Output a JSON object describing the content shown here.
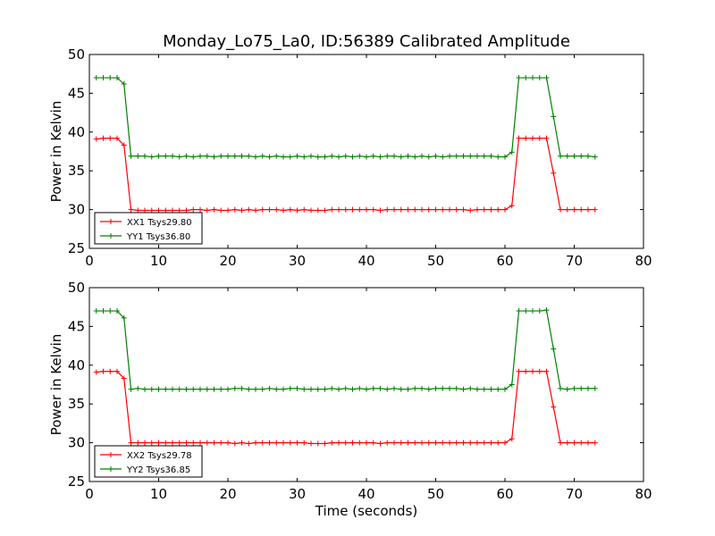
{
  "figure": {
    "title": "Monday_Lo75_La0, ID:56389 Calibrated Amplitude"
  },
  "chart_data": [
    {
      "type": "line",
      "title": "Monday_Lo75_La0, ID:56389 Calibrated Amplitude",
      "xlabel": "",
      "ylabel": "Power in Kelvin",
      "xlim": [
        0,
        80
      ],
      "ylim": [
        25,
        50
      ],
      "xticks": [
        "0",
        "10",
        "20",
        "30",
        "40",
        "50",
        "60",
        "70",
        "80"
      ],
      "yticks": [
        "25",
        "30",
        "35",
        "40",
        "45",
        "50"
      ],
      "grid": false,
      "legend_position": "lower-left",
      "x": [
        1,
        2,
        3,
        4,
        5,
        6,
        7,
        8,
        9,
        10,
        11,
        12,
        13,
        14,
        15,
        16,
        17,
        18,
        19,
        20,
        21,
        22,
        23,
        24,
        25,
        26,
        27,
        28,
        29,
        30,
        31,
        32,
        33,
        34,
        35,
        36,
        37,
        38,
        39,
        40,
        41,
        42,
        43,
        44,
        45,
        46,
        47,
        48,
        49,
        50,
        51,
        52,
        53,
        54,
        55,
        56,
        57,
        58,
        59,
        60,
        61,
        62,
        63,
        64,
        65,
        66,
        67,
        68,
        69,
        70,
        71,
        72,
        73
      ],
      "series": [
        {
          "name": "XX1 Tsys29.80",
          "color": "#ff0000",
          "values": [
            39.1,
            39.2,
            39.2,
            39.2,
            38.3,
            30.0,
            29.9,
            29.9,
            29.9,
            29.9,
            29.9,
            29.9,
            29.9,
            29.9,
            30.0,
            30.0,
            29.9,
            30.0,
            29.9,
            29.9,
            30.0,
            29.9,
            30.0,
            29.9,
            30.0,
            30.0,
            30.0,
            29.9,
            30.0,
            29.9,
            30.0,
            29.9,
            29.9,
            29.9,
            30.0,
            30.0,
            30.0,
            30.0,
            30.0,
            30.0,
            30.0,
            29.9,
            30.0,
            30.0,
            30.0,
            30.0,
            30.0,
            30.0,
            30.0,
            30.0,
            30.0,
            30.0,
            30.0,
            30.0,
            29.9,
            30.0,
            30.0,
            30.0,
            30.0,
            30.0,
            30.5,
            39.2,
            39.2,
            39.2,
            39.2,
            39.2,
            34.7,
            30.0,
            30.0,
            30.0,
            30.0,
            30.0,
            30.0
          ]
        },
        {
          "name": "YY1 Tsys36.80",
          "color": "#008000",
          "values": [
            47.0,
            47.0,
            47.0,
            47.0,
            46.2,
            36.9,
            36.9,
            36.9,
            36.8,
            36.9,
            36.9,
            36.9,
            36.8,
            36.9,
            36.8,
            36.9,
            36.9,
            36.8,
            36.9,
            36.9,
            36.9,
            36.9,
            36.9,
            36.8,
            36.9,
            36.8,
            36.9,
            36.8,
            36.8,
            36.9,
            36.8,
            36.9,
            36.8,
            36.8,
            36.9,
            36.8,
            36.9,
            36.8,
            36.9,
            36.8,
            36.9,
            36.8,
            36.9,
            36.9,
            36.8,
            36.9,
            36.8,
            36.9,
            36.8,
            36.9,
            36.8,
            36.9,
            36.9,
            36.9,
            36.9,
            36.9,
            36.9,
            36.9,
            36.8,
            36.8,
            37.4,
            47.0,
            47.0,
            47.0,
            47.0,
            47.0,
            42.0,
            36.9,
            36.9,
            36.9,
            36.9,
            36.9,
            36.8
          ]
        }
      ]
    },
    {
      "type": "line",
      "title": "",
      "xlabel": "Time (seconds)",
      "ylabel": "Power in Kelvin",
      "xlim": [
        0,
        80
      ],
      "ylim": [
        25,
        50
      ],
      "xticks": [
        "0",
        "10",
        "20",
        "30",
        "40",
        "50",
        "60",
        "70",
        "80"
      ],
      "yticks": [
        "25",
        "30",
        "35",
        "40",
        "45",
        "50"
      ],
      "grid": false,
      "legend_position": "lower-left",
      "x": [
        1,
        2,
        3,
        4,
        5,
        6,
        7,
        8,
        9,
        10,
        11,
        12,
        13,
        14,
        15,
        16,
        17,
        18,
        19,
        20,
        21,
        22,
        23,
        24,
        25,
        26,
        27,
        28,
        29,
        30,
        31,
        32,
        33,
        34,
        35,
        36,
        37,
        38,
        39,
        40,
        41,
        42,
        43,
        44,
        45,
        46,
        47,
        48,
        49,
        50,
        51,
        52,
        53,
        54,
        55,
        56,
        57,
        58,
        59,
        60,
        61,
        62,
        63,
        64,
        65,
        66,
        67,
        68,
        69,
        70,
        71,
        72,
        73
      ],
      "series": [
        {
          "name": "XX2 Tsys29.78",
          "color": "#ff0000",
          "values": [
            39.1,
            39.2,
            39.2,
            39.2,
            38.3,
            30.0,
            30.0,
            30.0,
            30.0,
            30.0,
            30.0,
            30.0,
            30.0,
            30.0,
            30.0,
            30.0,
            30.0,
            30.0,
            30.0,
            30.0,
            29.9,
            30.0,
            29.9,
            30.0,
            30.0,
            30.0,
            30.0,
            30.0,
            30.0,
            30.0,
            30.0,
            29.9,
            29.9,
            29.9,
            30.0,
            30.0,
            30.0,
            30.0,
            30.0,
            30.0,
            30.0,
            29.9,
            30.0,
            30.0,
            30.0,
            30.0,
            30.0,
            30.0,
            30.0,
            30.0,
            30.0,
            30.0,
            30.0,
            30.0,
            30.0,
            30.0,
            30.0,
            30.0,
            30.0,
            30.0,
            30.5,
            39.2,
            39.2,
            39.2,
            39.2,
            39.2,
            34.6,
            30.0,
            30.0,
            30.0,
            30.0,
            30.0,
            30.0
          ]
        },
        {
          "name": "YY2 Tsys36.85",
          "color": "#008000",
          "values": [
            47.0,
            47.0,
            47.0,
            47.0,
            46.1,
            36.9,
            37.0,
            36.9,
            36.9,
            36.9,
            36.9,
            36.9,
            36.9,
            36.9,
            36.9,
            36.9,
            36.9,
            36.9,
            36.9,
            36.9,
            37.0,
            37.0,
            36.9,
            36.9,
            36.9,
            37.0,
            36.9,
            36.9,
            37.0,
            37.0,
            36.9,
            36.9,
            36.9,
            36.9,
            37.0,
            36.9,
            37.0,
            36.9,
            37.0,
            36.9,
            37.0,
            37.0,
            36.9,
            37.0,
            36.9,
            36.9,
            37.0,
            37.0,
            36.9,
            37.0,
            37.0,
            37.0,
            37.0,
            36.9,
            37.0,
            36.9,
            36.9,
            36.9,
            36.9,
            36.9,
            37.5,
            47.0,
            47.0,
            47.0,
            47.0,
            47.1,
            42.1,
            37.0,
            36.9,
            37.0,
            37.0,
            37.0,
            37.0
          ]
        }
      ]
    }
  ]
}
